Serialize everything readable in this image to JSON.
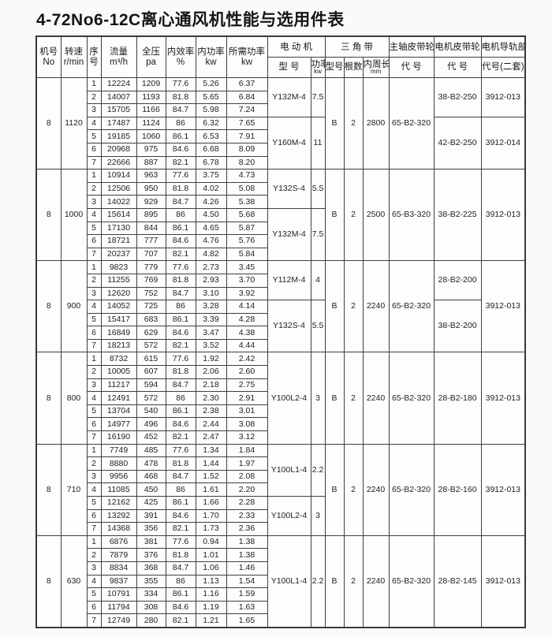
{
  "title": "4-72No6-12C离心通风机性能与选用件表",
  "table": {
    "header": {
      "stacked": [
        {
          "id": "machine-no",
          "lines": [
            "机号",
            "No"
          ]
        },
        {
          "id": "speed",
          "lines": [
            "转速",
            "r/min"
          ]
        },
        {
          "id": "seq",
          "lines": [
            "序",
            "号"
          ]
        },
        {
          "id": "flow",
          "lines": [
            "流量",
            "m³/h"
          ]
        },
        {
          "id": "pressure",
          "lines": [
            "全压",
            "pa"
          ]
        },
        {
          "id": "efficiency",
          "lines": [
            "内效率",
            "%"
          ]
        },
        {
          "id": "internal-power",
          "lines": [
            "内功率",
            "kw"
          ]
        },
        {
          "id": "required-power",
          "lines": [
            "所需功率",
            "kw"
          ]
        }
      ],
      "groups": [
        {
          "id": "motor",
          "label": "电 动 机",
          "children": [
            {
              "id": "motor-model",
              "lines": [
                "型 号"
              ],
              "small": false
            },
            {
              "id": "motor-power",
              "lines": [
                "功率",
                "kw"
              ],
              "small": true
            }
          ]
        },
        {
          "id": "v-belt",
          "label": "三 角 带",
          "children": [
            {
              "id": "belt-type",
              "lines": [
                "型号"
              ],
              "small": false
            },
            {
              "id": "belt-strands",
              "lines": [
                "根数"
              ],
              "small": false
            },
            {
              "id": "belt-length",
              "lines": [
                "内周长",
                "mm"
              ],
              "small": true
            }
          ]
        },
        {
          "id": "shaft-pulley",
          "label": "主轴皮带轮",
          "children": [
            {
              "id": "shaft-pulley-code",
              "lines": [
                "代 号"
              ],
              "small": false
            }
          ]
        },
        {
          "id": "motor-pulley",
          "label": "电机皮带轮",
          "children": [
            {
              "id": "motor-pulley-code",
              "lines": [
                "代 号"
              ],
              "small": false
            }
          ]
        },
        {
          "id": "motor-rail",
          "label": "电机导轨部",
          "children": [
            {
              "id": "rail-code",
              "lines": [
                "代号(二套)"
              ],
              "small": false
            }
          ]
        }
      ]
    },
    "sections": [
      {
        "machine_no": "8",
        "speed": "1120",
        "rows": [
          [
            "1",
            "12224",
            "1209",
            "77.6",
            "5.26",
            "6.37"
          ],
          [
            "2",
            "14007",
            "1193",
            "81.8",
            "5.65",
            "6.84"
          ],
          [
            "3",
            "15705",
            "1166",
            "84.7",
            "5.98",
            "7.24"
          ],
          [
            "4",
            "17487",
            "1124",
            "86",
            "6.32",
            "7.65"
          ],
          [
            "5",
            "19185",
            "1060",
            "86.1",
            "6.53",
            "7.91"
          ],
          [
            "6",
            "20968",
            "975",
            "84.6",
            "6.68",
            "8.09"
          ],
          [
            "7",
            "22666",
            "887",
            "82.1",
            "6.78",
            "8.20"
          ]
        ],
        "motors": [
          {
            "model": "Y132M-4",
            "power": "7.5",
            "start": 1,
            "span": 3
          },
          {
            "model": "Y160M-4",
            "power": "11",
            "start": 4,
            "span": 4
          }
        ],
        "belt": {
          "type": "B",
          "strands": "2",
          "length": "2800"
        },
        "shaft_pulley": "65-B2-320",
        "motor_pulleys": [
          {
            "code": "38-B2-250",
            "start": 1,
            "span": 3
          },
          {
            "code": "42-B2-250",
            "start": 4,
            "span": 4
          }
        ],
        "rails": [
          {
            "code": "3912-013",
            "start": 1,
            "span": 3
          },
          {
            "code": "3912-014",
            "start": 4,
            "span": 4
          }
        ]
      },
      {
        "machine_no": "8",
        "speed": "1000",
        "rows": [
          [
            "1",
            "10914",
            "963",
            "77.6",
            "3.75",
            "4.73"
          ],
          [
            "2",
            "12506",
            "950",
            "81.8",
            "4.02",
            "5.08"
          ],
          [
            "3",
            "14022",
            "929",
            "84.7",
            "4.26",
            "5.38"
          ],
          [
            "4",
            "15614",
            "895",
            "86",
            "4.50",
            "5.68"
          ],
          [
            "5",
            "17130",
            "844",
            "86.1",
            "4.65",
            "5.87"
          ],
          [
            "6",
            "18721",
            "777",
            "84.6",
            "4.76",
            "5.76"
          ],
          [
            "7",
            "20237",
            "707",
            "82.1",
            "4.82",
            "5.84"
          ]
        ],
        "motors": [
          {
            "model": "Y132S-4",
            "power": "5.5",
            "start": 1,
            "span": 3
          },
          {
            "model": "Y132M-4",
            "power": "7.5",
            "start": 4,
            "span": 4
          }
        ],
        "belt": {
          "type": "B",
          "strands": "2",
          "length": "2500"
        },
        "shaft_pulley": "65-B3-320",
        "motor_pulleys": [
          {
            "code": "38-B2-225",
            "start": 1,
            "span": 7
          }
        ],
        "rails": [
          {
            "code": "3912-013",
            "start": 1,
            "span": 7
          }
        ]
      },
      {
        "machine_no": "8",
        "speed": "900",
        "rows": [
          [
            "1",
            "9823",
            "779",
            "77.6",
            "2.73",
            "3.45"
          ],
          [
            "2",
            "11255",
            "769",
            "81.8",
            "2.93",
            "3.70"
          ],
          [
            "3",
            "12620",
            "752",
            "84.7",
            "3.10",
            "3.92"
          ],
          [
            "4",
            "14052",
            "725",
            "86",
            "3.28",
            "4.14"
          ],
          [
            "5",
            "15417",
            "683",
            "86.1",
            "3.39",
            "4.28"
          ],
          [
            "6",
            "16849",
            "629",
            "84.6",
            "3.47",
            "4.38"
          ],
          [
            "7",
            "18213",
            "572",
            "82.1",
            "3.52",
            "4.44"
          ]
        ],
        "motors": [
          {
            "model": "Y112M-4",
            "power": "4",
            "start": 1,
            "span": 3
          },
          {
            "model": "Y132S-4",
            "power": "5.5",
            "start": 4,
            "span": 4
          }
        ],
        "belt": {
          "type": "B",
          "strands": "2",
          "length": "2240"
        },
        "shaft_pulley": "65-B2-320",
        "motor_pulleys": [
          {
            "code": "28-B2-200",
            "start": 1,
            "span": 3
          },
          {
            "code": "38-B2-200",
            "start": 4,
            "span": 4
          }
        ],
        "rails": [
          {
            "code": "3912-013",
            "start": 1,
            "span": 7
          }
        ]
      },
      {
        "machine_no": "8",
        "speed": "800",
        "rows": [
          [
            "1",
            "8732",
            "615",
            "77.6",
            "1.92",
            "2.42"
          ],
          [
            "2",
            "10005",
            "607",
            "81.8",
            "2.06",
            "2.60"
          ],
          [
            "3",
            "11217",
            "594",
            "84.7",
            "2.18",
            "2.75"
          ],
          [
            "4",
            "12491",
            "572",
            "86",
            "2.30",
            "2.91"
          ],
          [
            "5",
            "13704",
            "540",
            "86.1",
            "2.38",
            "3.01"
          ],
          [
            "6",
            "14977",
            "496",
            "84.6",
            "2.44",
            "3.08"
          ],
          [
            "7",
            "16190",
            "452",
            "82.1",
            "2.47",
            "3.12"
          ]
        ],
        "motors": [
          {
            "model": "Y100L2-4",
            "power": "3",
            "start": 1,
            "span": 7
          }
        ],
        "belt": {
          "type": "B",
          "strands": "2",
          "length": "2240"
        },
        "shaft_pulley": "65-B2-320",
        "motor_pulleys": [
          {
            "code": "28-B2-180",
            "start": 1,
            "span": 7
          }
        ],
        "rails": [
          {
            "code": "3912-013",
            "start": 1,
            "span": 7
          }
        ]
      },
      {
        "machine_no": "8",
        "speed": "710",
        "rows": [
          [
            "1",
            "7749",
            "485",
            "77.6",
            "1.34",
            "1.84"
          ],
          [
            "2",
            "8880",
            "478",
            "81.8",
            "1.44",
            "1.97"
          ],
          [
            "3",
            "9956",
            "468",
            "84.7",
            "1.52",
            "2.08"
          ],
          [
            "4",
            "11085",
            "450",
            "86",
            "1.61",
            "2.20"
          ],
          [
            "5",
            "12162",
            "425",
            "86.1",
            "1.66",
            "2.28"
          ],
          [
            "6",
            "13292",
            "391",
            "84.6",
            "1.70",
            "2.33"
          ],
          [
            "7",
            "14368",
            "356",
            "82.1",
            "1.73",
            "2.36"
          ]
        ],
        "motors": [
          {
            "model": "Y100L1-4",
            "power": "2.2",
            "start": 1,
            "span": 4
          },
          {
            "model": "Y100L2-4",
            "power": "3",
            "start": 5,
            "span": 3
          }
        ],
        "belt": {
          "type": "B",
          "strands": "2",
          "length": "2240"
        },
        "shaft_pulley": "65-B2-320",
        "motor_pulleys": [
          {
            "code": "28-B2-160",
            "start": 1,
            "span": 7
          }
        ],
        "rails": [
          {
            "code": "3912-013",
            "start": 1,
            "span": 7
          }
        ]
      },
      {
        "machine_no": "8",
        "speed": "630",
        "rows": [
          [
            "1",
            "6876",
            "381",
            "77.6",
            "0.94",
            "1.38"
          ],
          [
            "2",
            "7879",
            "376",
            "81.8",
            "1.01",
            "1.38"
          ],
          [
            "3",
            "8834",
            "368",
            "84.7",
            "1.06",
            "1.46"
          ],
          [
            "4",
            "9837",
            "355",
            "86",
            "1.13",
            "1.54"
          ],
          [
            "5",
            "10791",
            "334",
            "86.1",
            "1.16",
            "1.59"
          ],
          [
            "6",
            "11794",
            "308",
            "84.6",
            "1.19",
            "1.63"
          ],
          [
            "7",
            "12749",
            "280",
            "82.1",
            "1.21",
            "1.65"
          ]
        ],
        "motors": [
          {
            "model": "Y100L1-4",
            "power": "2.2",
            "start": 1,
            "span": 7
          }
        ],
        "belt": {
          "type": "B",
          "strands": "2",
          "length": "2240"
        },
        "shaft_pulley": "65-B2-320",
        "motor_pulleys": [
          {
            "code": "28-B2-145",
            "start": 1,
            "span": 7
          }
        ],
        "rails": [
          {
            "code": "3912-013",
            "start": 1,
            "span": 7
          }
        ]
      }
    ]
  }
}
